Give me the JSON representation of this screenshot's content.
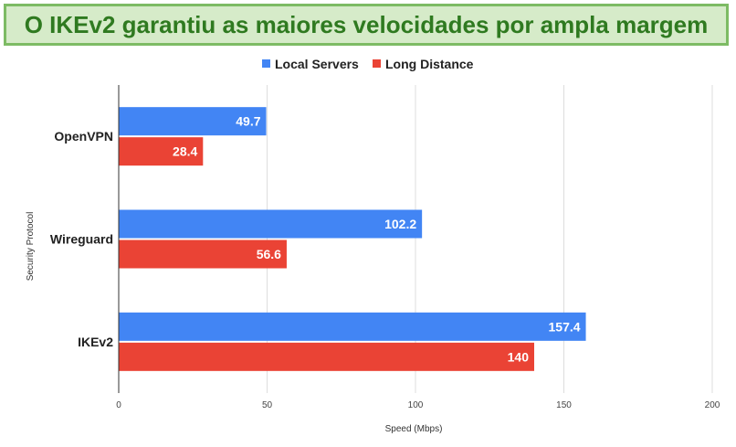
{
  "header": {
    "title": "O IKEv2 garantiu as maiores velocidades por ampla margem",
    "title_color": "#2f7a20",
    "banner_bg": "#d6ebc9",
    "banner_border": "#7dbb64"
  },
  "chart_data": {
    "type": "bar",
    "orientation": "horizontal",
    "categories": [
      "OpenVPN",
      "Wireguard",
      "IKEv2"
    ],
    "series": [
      {
        "name": "Local Servers",
        "values": [
          49.7,
          102.2,
          157.4
        ],
        "color": "#4285f4"
      },
      {
        "name": "Long Distance",
        "values": [
          28.4,
          56.6,
          140
        ],
        "color": "#ea4335"
      }
    ],
    "data_labels": [
      [
        "49.7",
        "102.2",
        "157.4"
      ],
      [
        "28.4",
        "56.6",
        "140"
      ]
    ],
    "xlabel": "Speed (Mbps)",
    "ylabel": "Security Protocol",
    "xlim": [
      0,
      200
    ],
    "xticks": [
      0,
      50,
      100,
      150,
      200
    ],
    "xtick_labels": [
      "0",
      "50",
      "100",
      "150",
      "200"
    ],
    "grid": true,
    "legend": "top-center"
  }
}
